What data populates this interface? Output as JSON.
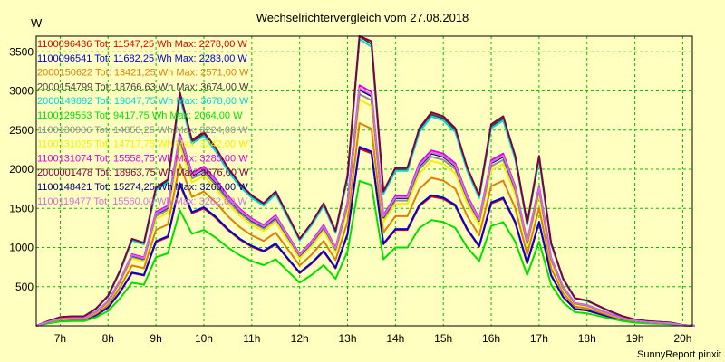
{
  "chart_data": {
    "type": "line",
    "title": "Wechselrichtervergleich vom 27.08.2018",
    "ylabel": "W",
    "footer": "SunnyReport pinxit",
    "ylim": [
      0,
      3700
    ],
    "xlim": [
      6.5,
      20.2
    ],
    "yticks": [
      500,
      1000,
      1500,
      2000,
      2500,
      3000,
      3500
    ],
    "ytick_labels": [
      "500",
      "1000",
      "1500",
      "2000",
      "2500",
      "3000",
      "3500"
    ],
    "xticks": [
      7,
      8,
      9,
      10,
      11,
      12,
      13,
      14,
      15,
      16,
      17,
      18,
      19,
      20
    ],
    "xtick_labels": [
      "7h",
      "8h",
      "9h",
      "10h",
      "11h",
      "12h",
      "13h",
      "14h",
      "15h",
      "16h",
      "17h",
      "18h",
      "19h",
      "20h"
    ],
    "grid": true,
    "legend_position": "top-left",
    "x": [
      6.5,
      6.75,
      7.0,
      7.25,
      7.5,
      7.75,
      8.0,
      8.25,
      8.5,
      8.75,
      9.0,
      9.25,
      9.5,
      9.75,
      10.0,
      10.25,
      10.5,
      10.75,
      11.0,
      11.25,
      11.5,
      11.75,
      12.0,
      12.25,
      12.5,
      12.75,
      13.0,
      13.25,
      13.5,
      13.75,
      14.0,
      14.25,
      14.5,
      14.75,
      15.0,
      15.25,
      15.5,
      15.75,
      16.0,
      16.25,
      16.5,
      16.75,
      17.0,
      17.25,
      17.5,
      17.75,
      18.0,
      18.25,
      18.5,
      18.75,
      19.0,
      19.25,
      19.5,
      19.75,
      20.0,
      20.25
    ],
    "series": [
      {
        "name": "1100096436 Tot: 11547,25 Wh Max: 2278,00 W",
        "color": "#e00000",
        "scale": 0.612
      },
      {
        "name": "1100096541 Tot: 11682,25 Wh Max: 2283,00 W",
        "color": "#0000d8",
        "scale": 0.618
      },
      {
        "name": "2000150622 Tot: 13421,25 Wh Max: 2571,00 W",
        "color": "#e08000",
        "scale": 0.7
      },
      {
        "name": "2000154799 Tot: 18766,63 Wh Max: 3674,00 W",
        "color": "#404040",
        "scale": 1.0
      },
      {
        "name": "2000149892 Tot: 19047,75 Wh Max: 3678,00 W",
        "color": "#00d8d8",
        "scale": 0.99
      },
      {
        "name": "1100129553 Tot: 9417,75 Wh Max: 2064,00 W",
        "color": "#00e000",
        "scale": 0.5
      },
      {
        "name": "1100130986 Tot: 14858,25 Wh Max: 3224,00 W",
        "color": "#909090",
        "scale": 0.8
      },
      {
        "name": "1100131025 Tot: 14717,75 Wh Max: 3242,00 W",
        "color": "#f0f000",
        "scale": 0.78
      },
      {
        "name": "1100131074 Tot: 15558,75 Wh Max: 3280,00 W",
        "color": "#e000e0",
        "scale": 0.83
      },
      {
        "name": "2000001478 Tot: 18963,75 Wh Max: 3676,00 W",
        "color": "#800040",
        "scale": 1.01
      },
      {
        "name": "1100148421 Tot: 15274,25 Wh Max: 3265,00 W",
        "color": "#000080",
        "scale": 0.815
      },
      {
        "name": "1100119477 Tot: 15560,00 Wh Max: 3262,00 W",
        "color": "#d070e0",
        "scale": 0.82
      }
    ],
    "base_profile": [
      0,
      60,
      110,
      120,
      120,
      220,
      380,
      700,
      1100,
      1050,
      1750,
      1850,
      2950,
      2350,
      2450,
      2250,
      2000,
      1800,
      1650,
      1550,
      1700,
      1400,
      1100,
      1300,
      1550,
      1200,
      1900,
      3700,
      3600,
      1700,
      2000,
      2000,
      2500,
      2700,
      2650,
      2500,
      2000,
      1650,
      2550,
      2650,
      2150,
      1300,
      2150,
      1050,
      600,
      350,
      320,
      250,
      180,
      120,
      80,
      60,
      50,
      40,
      10,
      0
    ]
  }
}
